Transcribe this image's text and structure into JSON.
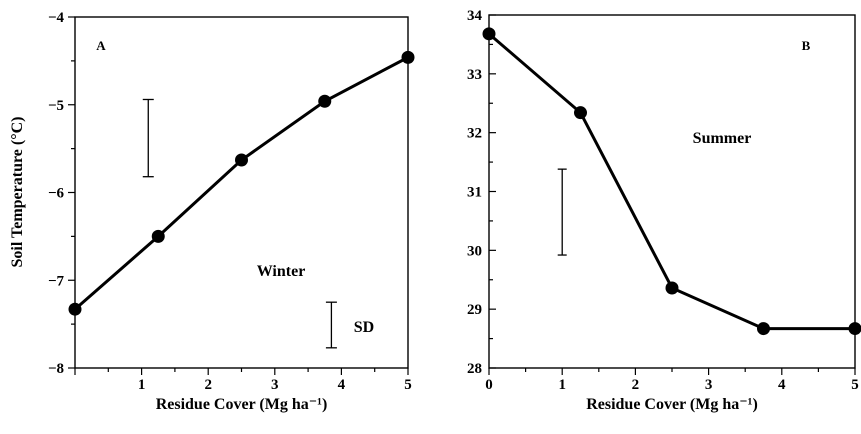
{
  "chart_data": [
    {
      "type": "line",
      "panel": "A",
      "xlabel": "Residue Cover (Mg ha⁻¹)",
      "ylabel": "Soil Temperature (°C)",
      "xlim": [
        0,
        5
      ],
      "ylim": [
        -8,
        -4
      ],
      "x_ticks": [
        0,
        1,
        2,
        3,
        4,
        5
      ],
      "x_tick_labels": [
        "",
        "1",
        "2",
        "3",
        "4",
        "5"
      ],
      "y_ticks": [
        -8,
        -7,
        -6,
        -5,
        -4
      ],
      "y_tick_labels": [
        "−8",
        "−7",
        "−6",
        "−5",
        "−4"
      ],
      "x": [
        0,
        1.25,
        2.5,
        3.75,
        5
      ],
      "values": [
        -7.33,
        -6.5,
        -5.63,
        -4.96,
        -4.46
      ],
      "annotations": [
        "Winter",
        "SD"
      ],
      "error_bars": [
        {
          "x": 1.1,
          "low": -5.82,
          "high": -4.94
        },
        {
          "x": 3.85,
          "low": -7.77,
          "high": -7.25
        }
      ],
      "grid": false
    },
    {
      "type": "line",
      "panel": "B",
      "xlabel": "Residue Cover (Mg ha⁻¹)",
      "ylabel": "",
      "xlim": [
        0,
        5
      ],
      "ylim": [
        28,
        34
      ],
      "x_ticks": [
        0,
        1,
        2,
        3,
        4,
        5
      ],
      "x_tick_labels": [
        "0",
        "1",
        "2",
        "3",
        "4",
        "5"
      ],
      "y_ticks": [
        28,
        29,
        30,
        31,
        32,
        33,
        34
      ],
      "y_tick_labels": [
        "28",
        "29",
        "30",
        "31",
        "32",
        "33",
        "34"
      ],
      "x": [
        0,
        1.25,
        2.5,
        3.75,
        5
      ],
      "values": [
        33.68,
        32.34,
        29.36,
        28.67,
        28.67
      ],
      "annotations": [
        "Summer"
      ],
      "error_bars": [
        {
          "x": 1.0,
          "low": 29.92,
          "high": 31.38
        }
      ],
      "grid": false
    }
  ]
}
